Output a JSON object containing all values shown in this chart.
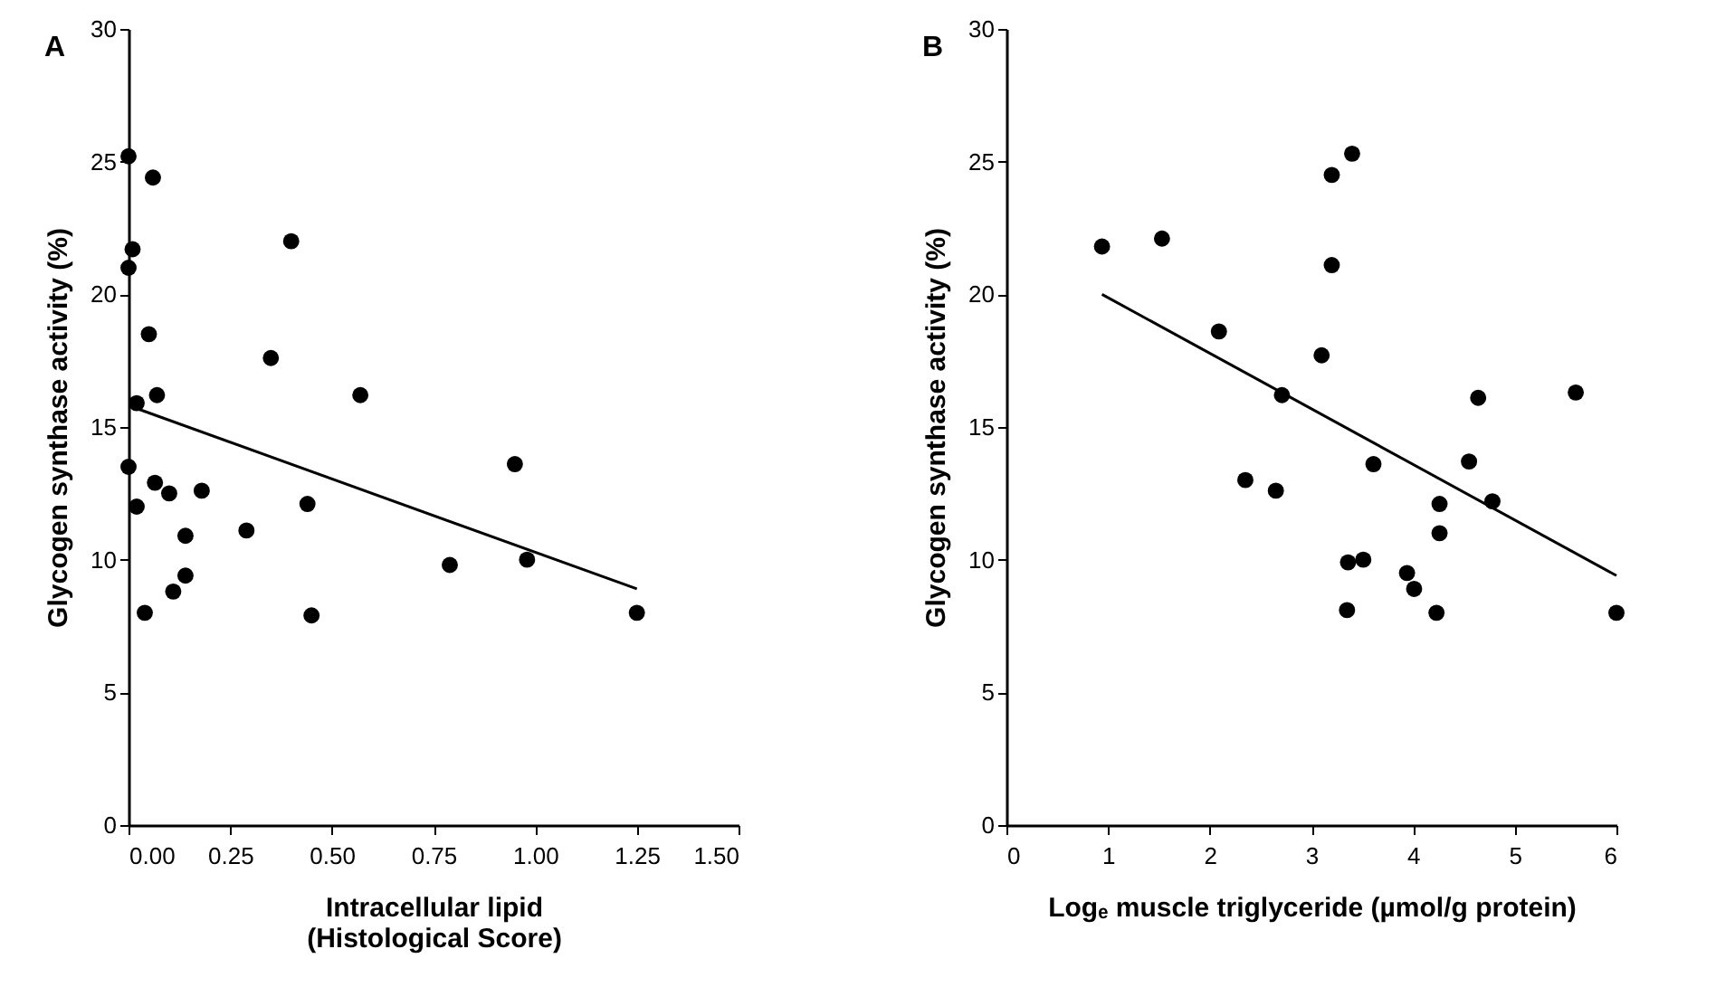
{
  "chart_data": [
    {
      "type": "scatter",
      "title": "A",
      "xlabel": "Intracellular lipid",
      "ylabel": "Glycogen synthase activity (%)",
      "annotations": [
        "(Histological Score)"
      ],
      "xlim": [
        0,
        1.5
      ],
      "xticks": [
        {
          "value": 0,
          "label": "0.00"
        },
        {
          "value": 0.25,
          "label": "0.25"
        },
        {
          "value": 0.5,
          "label": "0.50"
        },
        {
          "value": 0.75,
          "label": "0.75"
        },
        {
          "value": 1,
          "label": "1.00"
        },
        {
          "value": 1.25,
          "label": "1.25"
        },
        {
          "value": 1.5,
          "label": "1.50"
        }
      ],
      "ylim": [
        0,
        30
      ],
      "yticks": [
        0,
        5,
        10,
        15,
        20,
        25,
        30
      ],
      "grid": false,
      "marker": "circle",
      "series": [
        {
          "color": "#000000",
          "x": [
            0.0,
            0.06,
            0.4,
            0.01,
            0.0,
            0.05,
            0.35,
            0.02,
            0.07,
            0.57,
            0.95,
            0.0,
            0.065,
            0.1,
            0.18,
            0.02,
            0.44,
            0.14,
            0.29,
            0.79,
            0.98,
            0.14,
            0.11,
            0.04,
            0.45,
            1.25
          ],
          "values": [
            25.2,
            24.4,
            22.0,
            21.7,
            21.0,
            18.5,
            17.6,
            15.9,
            16.2,
            16.2,
            13.6,
            13.5,
            12.9,
            12.5,
            12.6,
            12.0,
            12.1,
            10.9,
            11.1,
            9.8,
            10.0,
            9.4,
            8.8,
            8.0,
            7.9,
            8.0
          ]
        },
        {
          "type": "line",
          "color": "#000000",
          "x": [
            0.02,
            1.25
          ],
          "values": [
            15.7,
            8.9
          ],
          "marker": "none",
          "line_style": "solid"
        }
      ]
    },
    {
      "type": "scatter",
      "title": "B",
      "xlabel": "Logₑ muscle triglyceride (µmol/g protein)",
      "ylabel": "Glycogen synthase activity (%)",
      "xlim": [
        0,
        6
      ],
      "xticks": [
        0,
        1,
        2,
        3,
        4,
        5,
        6
      ],
      "ylim": [
        0,
        30
      ],
      "yticks": [
        0,
        5,
        10,
        15,
        20,
        25,
        30
      ],
      "grid": false,
      "marker": "circle",
      "series": [
        {
          "color": "#000000",
          "x": [
            0.94,
            1.53,
            2.09,
            2.71,
            2.35,
            2.65,
            3.4,
            3.2,
            3.2,
            3.1,
            4.64,
            5.6,
            3.61,
            4.55,
            4.26,
            4.78,
            4.26,
            3.36,
            3.51,
            3.94,
            4.01,
            3.35,
            4.23,
            6.0
          ],
          "values": [
            21.8,
            22.1,
            18.6,
            16.2,
            13.0,
            12.6,
            25.3,
            24.5,
            21.1,
            17.7,
            16.1,
            16.3,
            13.6,
            13.7,
            12.1,
            12.2,
            11.0,
            9.9,
            10.0,
            9.5,
            8.9,
            8.1,
            8.0,
            8.0
          ]
        },
        {
          "type": "line",
          "color": "#000000",
          "x": [
            0.94,
            6.0
          ],
          "values": [
            20.0,
            9.4
          ],
          "marker": "none",
          "line_style": "solid"
        }
      ]
    }
  ]
}
